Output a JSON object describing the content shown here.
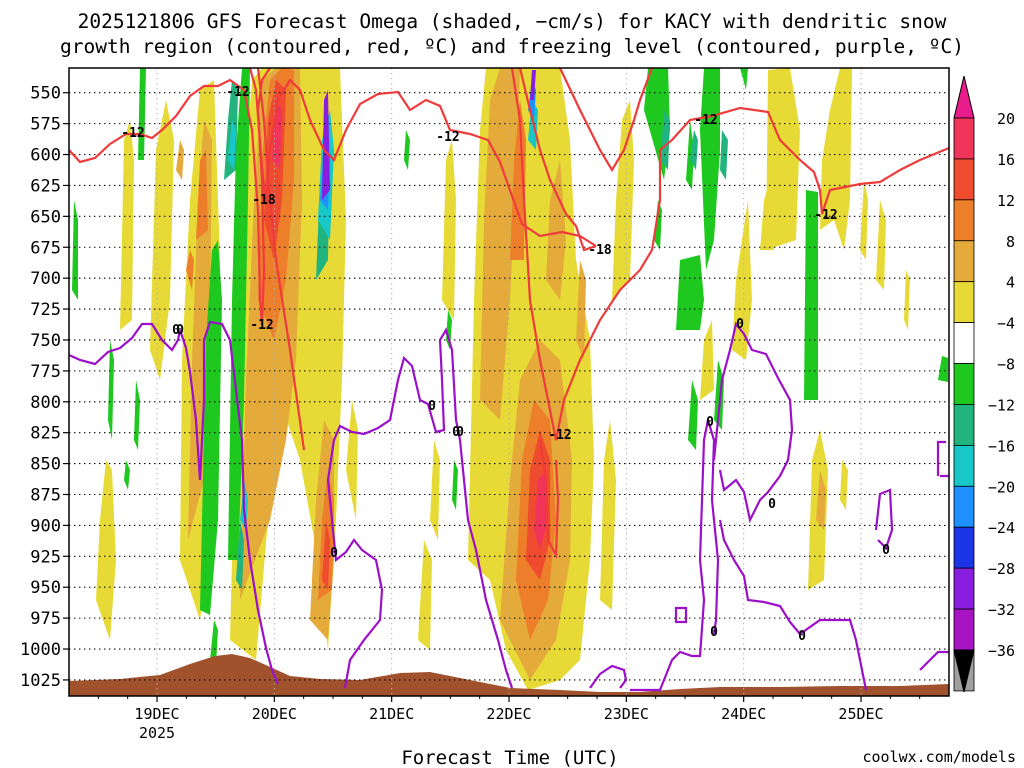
{
  "chart_data": {
    "type": "heatmap",
    "title_line1": "2025121806 GFS Forecast Omega (shaded, −cm/s) for KACY with dendritic snow",
    "title_line2": "growth region (contoured, red, ºC) and freezing level (contoured, purple, ºC)",
    "xlabel": "Forecast Time (UTC)",
    "credit": "coolwx.com/models",
    "year_label": "2025",
    "x_ticks": [
      {
        "label": "19DEC",
        "hour": 24
      },
      {
        "label": "20DEC",
        "hour": 48
      },
      {
        "label": "21DEC",
        "hour": 72
      },
      {
        "label": "22DEC",
        "hour": 96
      },
      {
        "label": "23DEC",
        "hour": 120
      },
      {
        "label": "24DEC",
        "hour": 144
      },
      {
        "label": "25DEC",
        "hour": 168
      }
    ],
    "x_range_hours": [
      6,
      186
    ],
    "y_ticks": [
      "550",
      "575",
      "600",
      "625",
      "650",
      "675",
      "700",
      "725",
      "750",
      "775",
      "800",
      "825",
      "850",
      "875",
      "900",
      "925",
      "950",
      "975",
      "1000",
      "1025"
    ],
    "y_range_hPa": [
      530,
      1038
    ],
    "colorbar": {
      "labels": [
        "20",
        "16",
        "12",
        "8",
        "4",
        "−4",
        "−8",
        "−12",
        "−16",
        "−20",
        "−24",
        "−28",
        "−32",
        "−36"
      ],
      "colors": [
        "#f0345a",
        "#ee4b2f",
        "#ee7f2a",
        "#e4ab3b",
        "#e8da36",
        "#ffffff",
        "#1ec81e",
        "#22b47e",
        "#18c8c8",
        "#1e90ff",
        "#1a34e6",
        "#8a1ee0",
        "#a814c4",
        "#a0a0a0"
      ],
      "top_arrow_color": "#e81c8c",
      "bottom_arrow_color": "#000000"
    },
    "contours": {
      "red": {
        "name": "dendritic snow growth region",
        "labels": [
          "-12",
          "-12",
          "-18",
          "-12",
          "-12",
          "-18",
          "-12",
          "-12",
          "-12"
        ]
      },
      "purple": {
        "name": "freezing level",
        "labels": [
          "0",
          "0",
          "0",
          "0",
          "0",
          "0",
          "0",
          "0",
          "0",
          "0",
          "0",
          "0"
        ]
      }
    },
    "terrain_color": "#a0522d"
  }
}
